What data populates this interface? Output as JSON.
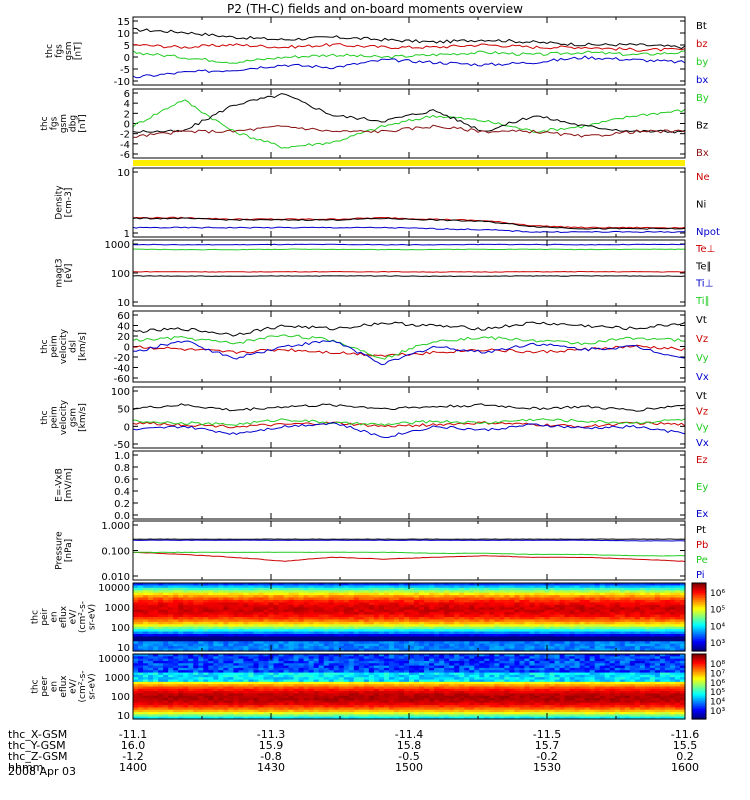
{
  "title": "P2 (TH-C) fields and on-board moments overview",
  "date": "2008 Apr 03",
  "colors": {
    "black": "#000000",
    "red": "#cc0000",
    "green": "#22cc22",
    "blue": "#0000cc",
    "darkred": "#881111",
    "yellow": "#ffee00"
  },
  "chart_data": [
    {
      "type": "line",
      "panel": "fgs_gsm",
      "ylabel": [
        "thc",
        "fgs",
        "gsm",
        "[nT]"
      ],
      "yticks": [
        "15",
        "10",
        "5",
        "0",
        "-5",
        "-10"
      ],
      "ylim": [
        -10,
        17
      ],
      "series": [
        {
          "name": "Bt",
          "color": "#000000",
          "values": [
            12,
            11,
            9,
            8,
            9,
            8,
            7,
            8,
            7,
            6,
            6,
            5
          ]
        },
        {
          "name": "bz",
          "color": "#cc0000",
          "values": [
            6,
            5,
            6,
            5,
            6,
            5,
            5,
            6,
            5,
            5,
            4,
            4
          ]
        },
        {
          "name": "by",
          "color": "#22cc22",
          "values": [
            3,
            1,
            -1,
            1,
            2,
            1,
            2,
            3,
            2,
            3,
            2,
            3
          ]
        },
        {
          "name": "bx",
          "color": "#0000cc",
          "values": [
            -7,
            -5,
            -4,
            -2,
            -3,
            0,
            -1,
            -2,
            -1,
            1,
            0,
            -1
          ]
        }
      ]
    },
    {
      "type": "line",
      "panel": "fgs_gsm_dbg",
      "ylabel": [
        "thc",
        "fgs",
        "gsm",
        "dbg",
        "[nT]"
      ],
      "yticks": [
        "6",
        "4",
        "2",
        "0",
        "-2",
        "-4",
        "-6"
      ],
      "ylim": [
        -7,
        6
      ],
      "series": [
        {
          "name": "By",
          "color": "#22cc22",
          "values": [
            -1,
            4,
            -2,
            -5,
            -4,
            -1,
            1,
            0,
            -2,
            -1,
            1,
            2
          ]
        },
        {
          "name": "Bz",
          "color": "#000000",
          "values": [
            -2,
            -2,
            3,
            5,
            1,
            0,
            2,
            -2,
            1,
            -1,
            -2,
            -2
          ]
        },
        {
          "name": "Bx",
          "color": "#881111",
          "values": [
            -3,
            -2,
            -2,
            -1,
            -2,
            -2,
            -1,
            -2,
            -2,
            -3,
            -2,
            -2
          ]
        }
      ]
    },
    {
      "type": "line",
      "panel": "density",
      "ylabel": [
        "Density",
        "[cm-3]"
      ],
      "yticks": [
        "10",
        "1"
      ],
      "scale": "log",
      "ylim": [
        1,
        12
      ],
      "series": [
        {
          "name": "Ne",
          "color": "#cc0000",
          "values": [
            2.0,
            2.0,
            1.9,
            1.9,
            1.9,
            2.0,
            1.9,
            1.8,
            1.5,
            1.4,
            1.4,
            1.4
          ]
        },
        {
          "name": "Ni",
          "color": "#000000",
          "values": [
            1.95,
            1.95,
            1.85,
            1.85,
            1.85,
            1.95,
            1.85,
            1.75,
            1.45,
            1.35,
            1.35,
            1.35
          ]
        },
        {
          "name": "Npot",
          "color": "#0000cc",
          "values": [
            1.4,
            1.4,
            1.4,
            1.4,
            1.4,
            1.4,
            1.35,
            1.3,
            1.2,
            1.2,
            1.2,
            1.2
          ]
        }
      ]
    },
    {
      "type": "line",
      "panel": "temperature",
      "ylabel": [
        "magt3",
        "[eV]"
      ],
      "yticks": [
        "1000",
        "100",
        "10"
      ],
      "scale": "log",
      "ylim": [
        10,
        1400
      ],
      "series": [
        {
          "name": "Te⊥",
          "color": "#cc0000",
          "values": [
            130,
            130,
            128,
            130,
            130,
            130,
            128,
            128,
            130,
            130,
            130,
            128
          ]
        },
        {
          "name": "Te∥",
          "color": "#000000",
          "values": [
            95,
            95,
            92,
            95,
            95,
            95,
            93,
            93,
            95,
            95,
            95,
            93
          ]
        },
        {
          "name": "Ti⊥",
          "color": "#0000cc",
          "values": [
            1000,
            980,
            980,
            1000,
            1000,
            980,
            980,
            1000,
            1000,
            980,
            1000,
            1000
          ]
        },
        {
          "name": "Ti∥",
          "color": "#22cc22",
          "values": [
            700,
            680,
            680,
            700,
            700,
            680,
            690,
            700,
            700,
            690,
            700,
            700
          ]
        }
      ]
    },
    {
      "type": "line",
      "panel": "peim_velocity_dsl",
      "ylabel": [
        "thc",
        "peim",
        "velocity",
        "dsl",
        "[km/s]"
      ],
      "yticks": [
        "60",
        "40",
        "20",
        "0",
        "-20",
        "-40",
        "-60"
      ],
      "ylim": [
        -60,
        60
      ],
      "series": [
        {
          "name": "Vt",
          "color": "#000000",
          "values": [
            25,
            30,
            20,
            35,
            30,
            40,
            35,
            30,
            40,
            35,
            30,
            40
          ]
        },
        {
          "name": "Vz",
          "color": "#cc0000",
          "values": [
            0,
            -5,
            -10,
            -5,
            -10,
            -15,
            -10,
            -5,
            -10,
            -5,
            0,
            -5
          ]
        },
        {
          "name": "Vy",
          "color": "#22cc22",
          "values": [
            10,
            15,
            5,
            20,
            10,
            -20,
            10,
            15,
            10,
            5,
            15,
            10
          ]
        },
        {
          "name": "Vx",
          "color": "#0000cc",
          "values": [
            -10,
            10,
            -20,
            0,
            10,
            -30,
            0,
            -10,
            5,
            -5,
            0,
            -20
          ]
        }
      ]
    },
    {
      "type": "line",
      "panel": "peim_velocity_gsm",
      "ylabel": [
        "thc",
        "peim",
        "velocity",
        "gsm",
        "[km/s]"
      ],
      "yticks": [
        "100",
        "50",
        "0",
        "-50"
      ],
      "ylim": [
        -60,
        110
      ],
      "series": [
        {
          "name": "Vt",
          "color": "#000000",
          "values": [
            50,
            60,
            45,
            55,
            60,
            50,
            55,
            60,
            50,
            55,
            45,
            60
          ]
        },
        {
          "name": "Vz",
          "color": "#cc0000",
          "values": [
            10,
            5,
            0,
            5,
            10,
            0,
            5,
            10,
            5,
            0,
            10,
            5
          ]
        },
        {
          "name": "Vy",
          "color": "#22cc22",
          "values": [
            15,
            10,
            5,
            20,
            10,
            5,
            15,
            10,
            20,
            15,
            10,
            20
          ]
        },
        {
          "name": "Vx",
          "color": "#0000cc",
          "values": [
            -10,
            0,
            -20,
            0,
            10,
            -30,
            0,
            -10,
            5,
            -5,
            0,
            -20
          ]
        }
      ]
    },
    {
      "type": "line",
      "panel": "e_vxb",
      "ylabel": [
        "E=-VxB",
        "[mV/m]"
      ],
      "yticks": [
        "1.0",
        "0.8",
        "0.6",
        "0.4",
        "0.2",
        "0.0"
      ],
      "ylim": [
        0,
        1
      ],
      "series": [
        {
          "name": "Ez",
          "color": "#cc0000",
          "values": []
        },
        {
          "name": "Ey",
          "color": "#22cc22",
          "values": []
        },
        {
          "name": "Ex",
          "color": "#0000cc",
          "values": []
        }
      ]
    },
    {
      "type": "line",
      "panel": "pressure",
      "ylabel": [
        "Pressure",
        "[nPa]"
      ],
      "yticks": [
        "1.000",
        "0.100",
        "0.010"
      ],
      "scale": "log",
      "ylim": [
        0.003,
        1.2
      ],
      "series": [
        {
          "name": "Pt",
          "color": "#000000",
          "values": [
            0.19,
            0.19,
            0.19,
            0.19,
            0.19,
            0.19,
            0.19,
            0.19,
            0.19,
            0.19,
            0.19,
            0.19
          ]
        },
        {
          "name": "Pb",
          "color": "#cc0000",
          "values": [
            0.05,
            0.04,
            0.03,
            0.02,
            0.03,
            0.025,
            0.03,
            0.035,
            0.03,
            0.03,
            0.025,
            0.02
          ]
        },
        {
          "name": "Pe",
          "color": "#22cc22",
          "values": [
            0.05,
            0.05,
            0.05,
            0.05,
            0.05,
            0.05,
            0.045,
            0.045,
            0.04,
            0.04,
            0.035,
            0.035
          ]
        },
        {
          "name": "Pi",
          "color": "#0000cc",
          "values": [
            0.17,
            0.17,
            0.17,
            0.17,
            0.17,
            0.17,
            0.17,
            0.17,
            0.17,
            0.17,
            0.16,
            0.16
          ]
        }
      ]
    },
    {
      "type": "heatmap",
      "panel": "peir_en_eflux",
      "ylabel": [
        "thc",
        "peir",
        "en",
        "eflux",
        "eV/",
        "(cm^2-s-",
        "sr-eV)"
      ],
      "yticks": [
        "10000",
        "1000",
        "100",
        "10"
      ],
      "colorbar_ticks": [
        "10^6",
        "10^5",
        "10^4",
        "10^3"
      ]
    },
    {
      "type": "heatmap",
      "panel": "peer_en_eflux",
      "ylabel": [
        "thc",
        "peer",
        "en",
        "eflux",
        "eV/",
        "(cm^2-s-",
        "sr-eV)"
      ],
      "yticks": [
        "10000",
        "1000",
        "100",
        "10"
      ],
      "colorbar_ticks": [
        "10^8",
        "10^7",
        "10^6",
        "10^5",
        "10^4",
        "10^3"
      ]
    }
  ],
  "xaxis": {
    "row_labels": [
      "thc_X-GSM",
      "thc_Y-GSM",
      "thc_Z-GSM",
      "hhmm"
    ],
    "columns": [
      [
        "-11.1",
        "16.0",
        "-1.2",
        "1400"
      ],
      [
        "-11.3",
        "15.9",
        "-0.8",
        "1430"
      ],
      [
        "-11.4",
        "15.8",
        "-0.5",
        "1500"
      ],
      [
        "-11.5",
        "15.7",
        "-0.2",
        "1530"
      ],
      [
        "-11.6",
        "15.5",
        "0.2",
        "1600"
      ]
    ]
  }
}
